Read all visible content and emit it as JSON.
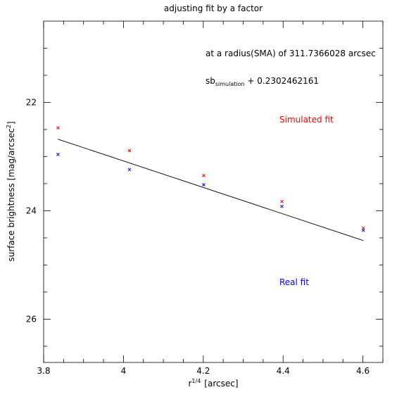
{
  "chart_data": {
    "type": "scatter",
    "title": "adjusting fit by a factor",
    "xlabel": "r",
    "xlabel_sup": "1/4",
    "xlabel_unit": "[arcsec]",
    "ylabel": "surface brightness [mag/arcsec",
    "ylabel_sup": "2",
    "ylabel_end": "]",
    "xlim": [
      3.8,
      4.65
    ],
    "ylim": [
      26.8,
      20.5
    ],
    "y_inverted": true,
    "grid": false,
    "x_ticks": [
      {
        "value": 3.8,
        "label": "3.8"
      },
      {
        "value": 4.0,
        "label": "4"
      },
      {
        "value": 4.2,
        "label": "4.2"
      },
      {
        "value": 4.4,
        "label": "4.4"
      },
      {
        "value": 4.6,
        "label": "4.6"
      }
    ],
    "y_ticks": [
      {
        "value": 22,
        "label": "22"
      },
      {
        "value": 24,
        "label": "24"
      },
      {
        "value": 26,
        "label": "26"
      }
    ],
    "annotations": {
      "radius_text": "at a radius(SMA) of 311.7366028 arcsec",
      "sb_main": "sb",
      "sb_sub": "simulation",
      "sb_rest": " + 0.2302462161",
      "simulated_label": "Simulated fit",
      "real_label": "Real fit"
    },
    "series": [
      {
        "name": "Simulated fit",
        "color": "#ff0000",
        "marker": "x",
        "x": [
          3.836,
          4.015,
          4.201,
          4.397,
          4.601
        ],
        "y": [
          22.47,
          22.89,
          23.35,
          23.83,
          24.32
        ]
      },
      {
        "name": "Real fit",
        "color": "#0000ff",
        "marker": "x",
        "x": [
          3.836,
          4.015,
          4.201,
          4.397,
          4.601
        ],
        "y": [
          22.96,
          23.24,
          23.52,
          23.92,
          24.36
        ]
      },
      {
        "name": "fit",
        "color": "#000000",
        "type": "line",
        "x": [
          3.836,
          4.601
        ],
        "y": [
          22.68,
          24.55
        ]
      }
    ]
  }
}
